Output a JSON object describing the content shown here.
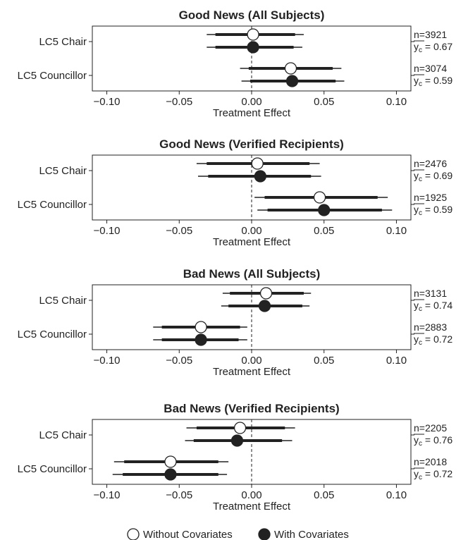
{
  "chart_data": [
    {
      "type": "forest",
      "title": "Good News (All Subjects)",
      "xlabel": "Treatment Effect",
      "xlim": [
        -0.11,
        0.11
      ],
      "xticks": [
        "−0.10",
        "−0.05",
        "0.00",
        "0.05",
        "0.10"
      ],
      "tick_values": [
        -0.1,
        -0.05,
        0.0,
        0.05,
        0.1
      ],
      "categories": [
        {
          "label": "LC5 Chair",
          "n": "n=3921",
          "yc": "0.67",
          "without": {
            "est": 0.001,
            "ci90": [
              -0.025,
              0.03
            ],
            "ci95": [
              -0.031,
              0.036
            ]
          },
          "with": {
            "est": 0.001,
            "ci90": [
              -0.025,
              0.029
            ],
            "ci95": [
              -0.031,
              0.035
            ]
          }
        },
        {
          "label": "LC5 Councillor",
          "n": "n=3074",
          "yc": "0.59",
          "without": {
            "est": 0.027,
            "ci90": [
              -0.002,
              0.056
            ],
            "ci95": [
              -0.008,
              0.062
            ]
          },
          "with": {
            "est": 0.028,
            "ci90": [
              -0.001,
              0.058
            ],
            "ci95": [
              -0.007,
              0.064
            ]
          }
        }
      ]
    },
    {
      "type": "forest",
      "title": "Good News (Verified Recipients)",
      "xlabel": "Treatment Effect",
      "xlim": [
        -0.11,
        0.11
      ],
      "xticks": [
        "−0.10",
        "−0.05",
        "0.00",
        "0.05",
        "0.10"
      ],
      "tick_values": [
        -0.1,
        -0.05,
        0.0,
        0.05,
        0.1
      ],
      "categories": [
        {
          "label": "LC5 Chair",
          "n": "n=2476",
          "yc": "0.69",
          "without": {
            "est": 0.004,
            "ci90": [
              -0.031,
              0.04
            ],
            "ci95": [
              -0.038,
              0.047
            ]
          },
          "with": {
            "est": 0.006,
            "ci90": [
              -0.03,
              0.041
            ],
            "ci95": [
              -0.037,
              0.048
            ]
          }
        },
        {
          "label": "LC5 Councillor",
          "n": "n=1925",
          "yc": "0.59",
          "without": {
            "est": 0.047,
            "ci90": [
              0.009,
              0.087
            ],
            "ci95": [
              0.002,
              0.094
            ]
          },
          "with": {
            "est": 0.05,
            "ci90": [
              0.011,
              0.09
            ],
            "ci95": [
              0.004,
              0.097
            ]
          }
        }
      ]
    },
    {
      "type": "forest",
      "title": "Bad News (All Subjects)",
      "xlabel": "Treatment Effect",
      "xlim": [
        -0.11,
        0.11
      ],
      "xticks": [
        "−0.10",
        "−0.05",
        "0.00",
        "0.05",
        "0.10"
      ],
      "tick_values": [
        -0.1,
        -0.05,
        0.0,
        0.05,
        0.1
      ],
      "categories": [
        {
          "label": "LC5 Chair",
          "n": "n=3131",
          "yc": "0.74",
          "without": {
            "est": 0.01,
            "ci90": [
              -0.015,
              0.036
            ],
            "ci95": [
              -0.02,
              0.041
            ]
          },
          "with": {
            "est": 0.009,
            "ci90": [
              -0.016,
              0.035
            ],
            "ci95": [
              -0.021,
              0.04
            ]
          }
        },
        {
          "label": "LC5 Councillor",
          "n": "n=2883",
          "yc": "0.72",
          "without": {
            "est": -0.035,
            "ci90": [
              -0.062,
              -0.008
            ],
            "ci95": [
              -0.068,
              -0.003
            ]
          },
          "with": {
            "est": -0.035,
            "ci90": [
              -0.062,
              -0.009
            ],
            "ci95": [
              -0.068,
              -0.003
            ]
          }
        }
      ]
    },
    {
      "type": "forest",
      "title": "Bad News (Verified Recipients)",
      "xlabel": "Treatment Effect",
      "xlim": [
        -0.11,
        0.11
      ],
      "xticks": [
        "−0.10",
        "−0.05",
        "0.00",
        "0.05",
        "0.10"
      ],
      "tick_values": [
        -0.1,
        -0.05,
        0.0,
        0.05,
        0.1
      ],
      "categories": [
        {
          "label": "LC5 Chair",
          "n": "n=2205",
          "yc": "0.76",
          "without": {
            "est": -0.008,
            "ci90": [
              -0.038,
              0.023
            ],
            "ci95": [
              -0.045,
              0.03
            ]
          },
          "with": {
            "est": -0.01,
            "ci90": [
              -0.04,
              0.021
            ],
            "ci95": [
              -0.046,
              0.028
            ]
          }
        },
        {
          "label": "LC5 Councillor",
          "n": "n=2018",
          "yc": "0.72",
          "without": {
            "est": -0.056,
            "ci90": [
              -0.088,
              -0.023
            ],
            "ci95": [
              -0.095,
              -0.016
            ]
          },
          "with": {
            "est": -0.056,
            "ci90": [
              -0.089,
              -0.023
            ],
            "ci95": [
              -0.096,
              -0.017
            ]
          }
        }
      ]
    }
  ],
  "legend": {
    "items": [
      {
        "label": "Without Covariates",
        "marker": "open-circle"
      },
      {
        "label": "With Covariates",
        "marker": "filled-circle"
      }
    ]
  }
}
